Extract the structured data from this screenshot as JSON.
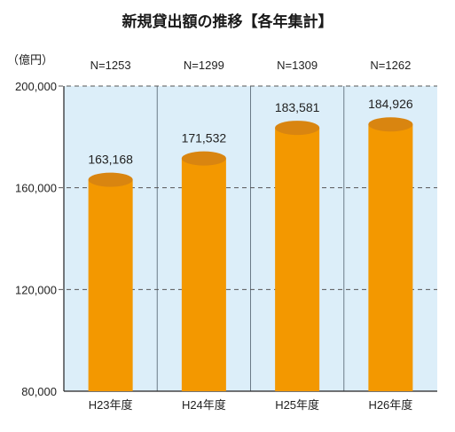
{
  "chart_data": {
    "type": "bar",
    "title": "新規貸出額の推移【各年集計】",
    "ylabel": "（億円）",
    "xlabel": "",
    "categories": [
      "H23年度",
      "H24年度",
      "H25年度",
      "H26年度"
    ],
    "values": [
      163168,
      171532,
      183581,
      184926
    ],
    "value_labels": [
      "163,168",
      "171,532",
      "183,581",
      "184,926"
    ],
    "sample_sizes": [
      "N=1253",
      "N=1299",
      "N=1309",
      "N=1262"
    ],
    "ylim": [
      80000,
      200000
    ],
    "yticks": [
      80000,
      120000,
      160000,
      200000
    ],
    "ytick_labels": [
      "80,000",
      "120,000",
      "160,000",
      "200,000"
    ],
    "grid": true,
    "colors": {
      "bar": "#F39800",
      "bar_top": "#D98510",
      "plot_bg": "#DCEEF9",
      "grid": "#555555"
    }
  }
}
